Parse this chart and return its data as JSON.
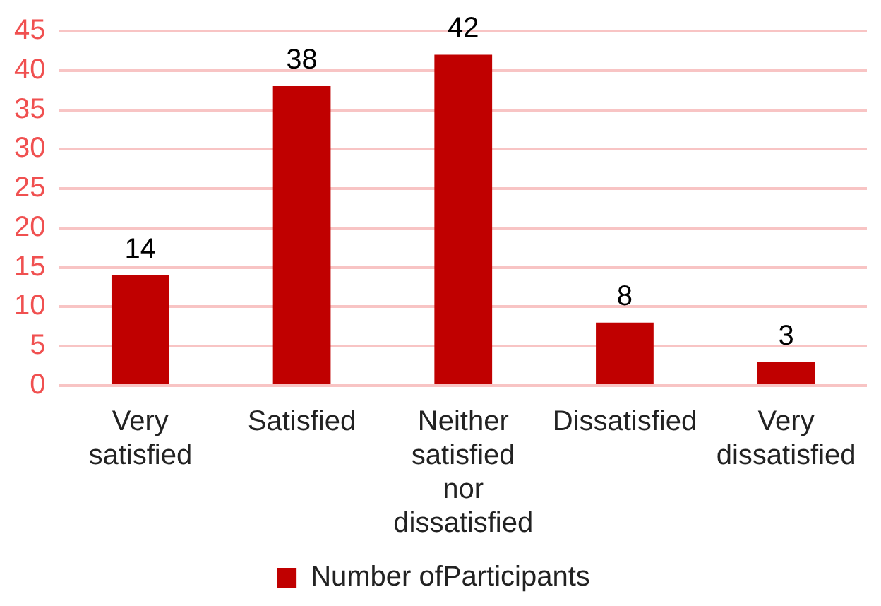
{
  "chart_data": {
    "type": "bar",
    "categories": [
      "Very satisfied",
      "Satisfied",
      "Neither satisfied nor dissatisfied",
      "Dissatisfied",
      "Very dissatisfied"
    ],
    "series": [
      {
        "name": "Number ofParticipants",
        "color": "#c00000",
        "values": [
          14,
          38,
          42,
          8,
          3
        ]
      }
    ],
    "ylim": [
      0,
      45
    ],
    "yticks": [
      0,
      5,
      10,
      15,
      20,
      25,
      30,
      35,
      40,
      45
    ],
    "grid": "y",
    "legend": "bottom",
    "data_labels": true
  }
}
